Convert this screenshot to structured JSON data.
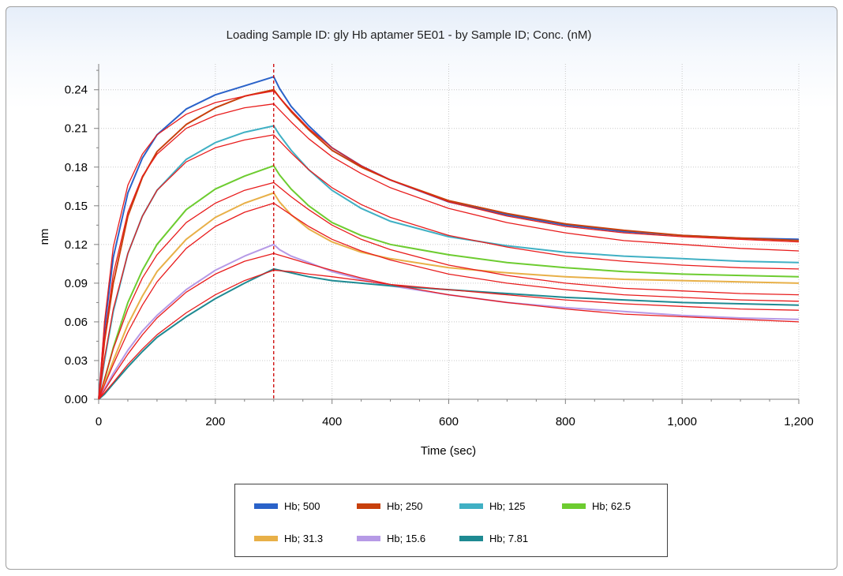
{
  "chart_data": {
    "type": "line",
    "title": "Loading Sample ID: gly Hb aptamer 5E01 - by Sample ID; Conc. (nM)",
    "xlabel": "Time (sec)",
    "ylabel": "nm",
    "xlim": [
      0,
      1200
    ],
    "ylim": [
      0,
      0.26
    ],
    "x_ticks": [
      0,
      200,
      400,
      600,
      800,
      1000,
      1200
    ],
    "x_tick_labels": [
      "0",
      "200",
      "400",
      "600",
      "800",
      "1,000",
      "1,200"
    ],
    "y_ticks": [
      0,
      0.03,
      0.06,
      0.09,
      0.12,
      0.15,
      0.18,
      0.21,
      0.24
    ],
    "y_tick_labels": [
      "0.00",
      "0.03",
      "0.06",
      "0.09",
      "0.12",
      "0.15",
      "0.18",
      "0.21",
      "0.24"
    ],
    "grid": true,
    "legend_position": "bottom",
    "dissociation_start": 300,
    "marker_line_color": "#cc0000",
    "fit_color": "#e81c1c",
    "series": [
      {
        "name": "Hb; 500",
        "color": "#2a62c9",
        "x": [
          0,
          10,
          25,
          50,
          75,
          100,
          150,
          200,
          250,
          300,
          310,
          330,
          360,
          400,
          450,
          500,
          600,
          700,
          800,
          900,
          1000,
          1100,
          1200
        ],
        "y": [
          0,
          0.055,
          0.11,
          0.16,
          0.187,
          0.205,
          0.225,
          0.236,
          0.243,
          0.25,
          0.241,
          0.227,
          0.212,
          0.195,
          0.181,
          0.17,
          0.153,
          0.143,
          0.135,
          0.13,
          0.127,
          0.125,
          0.124
        ]
      },
      {
        "name": "Hb; 250",
        "color": "#c8400c",
        "x": [
          0,
          10,
          25,
          50,
          75,
          100,
          150,
          200,
          250,
          300,
          310,
          330,
          360,
          400,
          450,
          500,
          600,
          700,
          800,
          900,
          1000,
          1100,
          1200
        ],
        "y": [
          0,
          0.045,
          0.09,
          0.142,
          0.172,
          0.192,
          0.213,
          0.226,
          0.235,
          0.24,
          0.234,
          0.223,
          0.209,
          0.193,
          0.18,
          0.17,
          0.154,
          0.144,
          0.136,
          0.131,
          0.127,
          0.125,
          0.123
        ]
      },
      {
        "name": "Hb; 125",
        "color": "#40b0c4",
        "x": [
          0,
          10,
          25,
          50,
          75,
          100,
          150,
          200,
          250,
          300,
          310,
          330,
          360,
          400,
          450,
          500,
          600,
          700,
          800,
          900,
          1000,
          1100,
          1200
        ],
        "y": [
          0,
          0.03,
          0.068,
          0.113,
          0.142,
          0.162,
          0.186,
          0.199,
          0.207,
          0.212,
          0.205,
          0.193,
          0.178,
          0.162,
          0.148,
          0.138,
          0.126,
          0.119,
          0.114,
          0.111,
          0.109,
          0.107,
          0.106
        ]
      },
      {
        "name": "Hb; 62.5",
        "color": "#6dcc30",
        "x": [
          0,
          10,
          25,
          50,
          75,
          100,
          150,
          200,
          250,
          300,
          310,
          330,
          360,
          400,
          450,
          500,
          600,
          700,
          800,
          900,
          1000,
          1100,
          1200
        ],
        "y": [
          0,
          0.015,
          0.04,
          0.075,
          0.1,
          0.12,
          0.147,
          0.163,
          0.173,
          0.181,
          0.174,
          0.163,
          0.15,
          0.137,
          0.127,
          0.12,
          0.112,
          0.106,
          0.102,
          0.099,
          0.097,
          0.096,
          0.095
        ]
      },
      {
        "name": "Hb; 31.3",
        "color": "#e8b048",
        "x": [
          0,
          10,
          25,
          50,
          75,
          100,
          150,
          200,
          250,
          300,
          310,
          330,
          360,
          400,
          450,
          500,
          600,
          700,
          800,
          900,
          1000,
          1100,
          1200
        ],
        "y": [
          0,
          0.012,
          0.03,
          0.058,
          0.08,
          0.099,
          0.124,
          0.141,
          0.152,
          0.16,
          0.153,
          0.143,
          0.132,
          0.122,
          0.114,
          0.109,
          0.102,
          0.098,
          0.095,
          0.093,
          0.092,
          0.091,
          0.09
        ]
      },
      {
        "name": "Hb; 15.6",
        "color": "#b69ae6",
        "x": [
          0,
          10,
          25,
          50,
          75,
          100,
          150,
          200,
          250,
          300,
          310,
          330,
          360,
          400,
          450,
          500,
          600,
          700,
          800,
          900,
          1000,
          1100,
          1200
        ],
        "y": [
          0,
          0.008,
          0.02,
          0.038,
          0.053,
          0.065,
          0.085,
          0.1,
          0.111,
          0.12,
          0.116,
          0.111,
          0.106,
          0.099,
          0.093,
          0.088,
          0.081,
          0.075,
          0.071,
          0.068,
          0.065,
          0.063,
          0.062
        ]
      },
      {
        "name": "Hb; 7.81",
        "color": "#1e8a92",
        "x": [
          0,
          10,
          25,
          50,
          75,
          100,
          150,
          200,
          250,
          300,
          310,
          330,
          360,
          400,
          450,
          500,
          600,
          700,
          800,
          900,
          1000,
          1100,
          1200
        ],
        "y": [
          0,
          0.004,
          0.012,
          0.025,
          0.037,
          0.048,
          0.064,
          0.078,
          0.09,
          0.101,
          0.1,
          0.098,
          0.095,
          0.092,
          0.09,
          0.088,
          0.085,
          0.082,
          0.079,
          0.077,
          0.075,
          0.074,
          0.073
        ]
      }
    ],
    "fits": [
      {
        "x": [
          0,
          10,
          25,
          50,
          75,
          100,
          150,
          200,
          250,
          300,
          330,
          360,
          400,
          450,
          500,
          600,
          700,
          800,
          900,
          1000,
          1100,
          1200
        ],
        "y": [
          0,
          0.06,
          0.118,
          0.166,
          0.19,
          0.205,
          0.221,
          0.23,
          0.235,
          0.239,
          0.224,
          0.21,
          0.195,
          0.181,
          0.17,
          0.153,
          0.142,
          0.134,
          0.129,
          0.126,
          0.124,
          0.122
        ]
      },
      {
        "x": [
          0,
          10,
          25,
          50,
          75,
          100,
          150,
          200,
          250,
          300,
          330,
          360,
          400,
          450,
          500,
          600,
          700,
          800,
          900,
          1000,
          1100,
          1200
        ],
        "y": [
          0,
          0.048,
          0.097,
          0.145,
          0.173,
          0.19,
          0.21,
          0.22,
          0.226,
          0.229,
          0.215,
          0.202,
          0.188,
          0.175,
          0.164,
          0.148,
          0.137,
          0.129,
          0.123,
          0.12,
          0.117,
          0.115
        ]
      },
      {
        "x": [
          0,
          10,
          25,
          50,
          75,
          100,
          150,
          200,
          250,
          300,
          330,
          360,
          400,
          450,
          500,
          600,
          700,
          800,
          900,
          1000,
          1100,
          1200
        ],
        "y": [
          0,
          0.032,
          0.07,
          0.113,
          0.142,
          0.162,
          0.184,
          0.195,
          0.201,
          0.205,
          0.191,
          0.178,
          0.164,
          0.151,
          0.141,
          0.127,
          0.118,
          0.111,
          0.107,
          0.104,
          0.102,
          0.101
        ]
      },
      {
        "x": [
          0,
          10,
          25,
          50,
          75,
          100,
          150,
          200,
          250,
          300,
          330,
          360,
          400,
          450,
          500,
          600,
          700,
          800,
          900,
          1000,
          1100,
          1200
        ],
        "y": [
          0,
          0.016,
          0.039,
          0.07,
          0.094,
          0.112,
          0.137,
          0.152,
          0.162,
          0.168,
          0.157,
          0.147,
          0.135,
          0.124,
          0.116,
          0.104,
          0.096,
          0.09,
          0.086,
          0.084,
          0.082,
          0.081
        ]
      },
      {
        "x": [
          0,
          10,
          25,
          50,
          75,
          100,
          150,
          200,
          250,
          300,
          330,
          360,
          400,
          450,
          500,
          600,
          700,
          800,
          900,
          1000,
          1100,
          1200
        ],
        "y": [
          0,
          0.011,
          0.027,
          0.052,
          0.073,
          0.091,
          0.117,
          0.134,
          0.145,
          0.152,
          0.143,
          0.134,
          0.124,
          0.115,
          0.108,
          0.097,
          0.09,
          0.085,
          0.081,
          0.079,
          0.077,
          0.076
        ]
      },
      {
        "x": [
          0,
          10,
          25,
          50,
          75,
          100,
          150,
          200,
          250,
          300,
          330,
          360,
          400,
          450,
          500,
          600,
          700,
          800,
          900,
          1000,
          1100,
          1200
        ],
        "y": [
          0,
          0.007,
          0.018,
          0.035,
          0.05,
          0.063,
          0.083,
          0.097,
          0.107,
          0.113,
          0.109,
          0.105,
          0.1,
          0.094,
          0.089,
          0.081,
          0.075,
          0.07,
          0.066,
          0.064,
          0.062,
          0.06
        ]
      },
      {
        "x": [
          0,
          10,
          25,
          50,
          75,
          100,
          150,
          200,
          250,
          300,
          330,
          360,
          400,
          450,
          500,
          600,
          700,
          800,
          900,
          1000,
          1100,
          1200
        ],
        "y": [
          0,
          0.005,
          0.013,
          0.027,
          0.039,
          0.05,
          0.067,
          0.081,
          0.092,
          0.1,
          0.099,
          0.097,
          0.095,
          0.092,
          0.089,
          0.085,
          0.081,
          0.077,
          0.074,
          0.072,
          0.07,
          0.069
        ]
      }
    ]
  }
}
